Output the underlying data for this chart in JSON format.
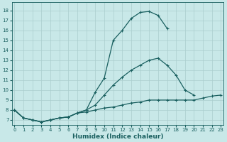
{
  "bg_color": "#c8e8e8",
  "grid_color": "#aacece",
  "line_color": "#1a6060",
  "xlabel": "Humidex (Indice chaleur)",
  "xlabel_fontsize": 6.5,
  "yticks": [
    7,
    8,
    9,
    10,
    11,
    12,
    13,
    14,
    15,
    16,
    17,
    18
  ],
  "xticks": [
    0,
    1,
    2,
    3,
    4,
    5,
    6,
    7,
    8,
    9,
    10,
    11,
    12,
    13,
    14,
    15,
    16,
    17,
    18,
    19,
    20,
    21,
    22,
    23
  ],
  "xlim": [
    -0.3,
    23.3
  ],
  "ylim": [
    6.5,
    18.8
  ],
  "curve1_x": [
    0,
    1,
    2,
    3,
    4,
    5,
    6,
    7,
    8,
    9,
    10,
    11,
    12,
    13,
    14,
    15,
    16,
    17
  ],
  "curve1_y": [
    8.0,
    7.2,
    7.0,
    6.8,
    7.0,
    7.2,
    7.3,
    7.7,
    8.0,
    9.8,
    11.2,
    15.0,
    16.0,
    17.2,
    17.8,
    17.9,
    17.5,
    16.2
  ],
  "curve2_x": [
    0,
    1,
    2,
    3,
    4,
    5,
    6,
    7,
    8,
    9,
    10,
    11,
    12,
    13,
    14,
    15,
    16,
    17,
    18,
    19,
    20
  ],
  "curve2_y": [
    8.0,
    7.2,
    7.0,
    6.8,
    7.0,
    7.2,
    7.3,
    7.7,
    8.0,
    8.5,
    9.5,
    10.5,
    11.3,
    12.0,
    12.5,
    13.0,
    13.2,
    12.5,
    11.5,
    10.0,
    9.5
  ],
  "curve3_x": [
    0,
    1,
    2,
    3,
    4,
    5,
    6,
    7,
    8,
    9,
    10,
    11,
    12,
    13,
    14,
    15,
    16,
    17,
    18,
    19,
    20,
    21,
    22,
    23
  ],
  "curve3_y": [
    8.0,
    7.2,
    7.0,
    6.8,
    7.0,
    7.2,
    7.3,
    7.7,
    7.8,
    8.0,
    8.2,
    8.3,
    8.5,
    8.7,
    8.8,
    9.0,
    9.0,
    9.0,
    9.0,
    9.0,
    9.0,
    9.2,
    9.4,
    9.5
  ]
}
